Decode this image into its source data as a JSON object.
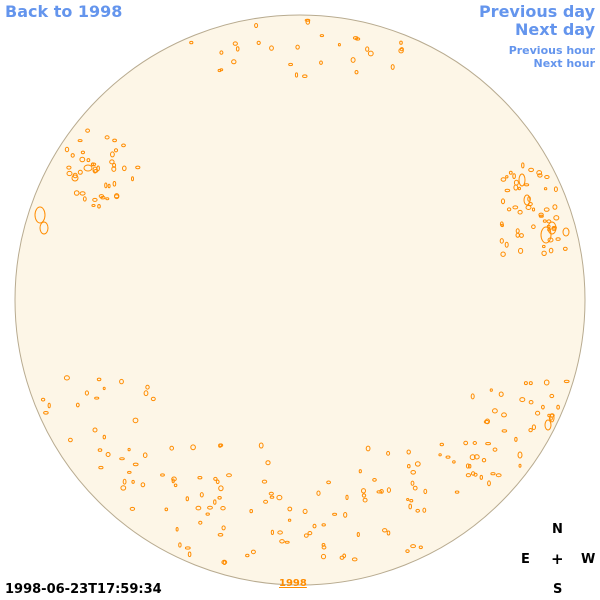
{
  "nav": {
    "back_label": "Back to 1998",
    "prev_day_label": "Previous day",
    "next_day_label": "Next day",
    "prev_hour_label": "Previous hour",
    "next_hour_label": "Next hour"
  },
  "timestamp": "1998-06-23T17:59:34",
  "year_link": "1998",
  "compass": {
    "north": "N",
    "east": "E",
    "center": "+",
    "west": "W",
    "south": "S"
  },
  "colors": {
    "disk_fill": "#fdf6e7",
    "disk_edge": "#b8ab90",
    "contour": "#ff8c00",
    "link": "#6495ed"
  }
}
